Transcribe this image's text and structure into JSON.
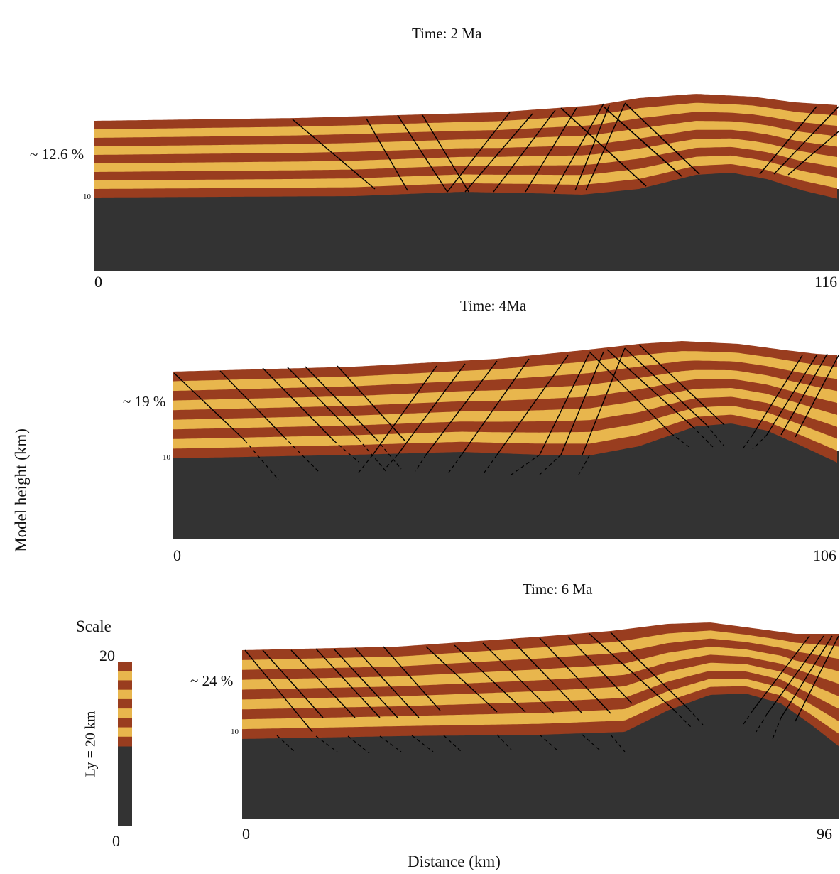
{
  "colors": {
    "basement": "#333333",
    "layer_dark": "#993d1f",
    "layer_light": "#e8b64d",
    "fault": "#000000"
  },
  "y_axis_label": "Model height (km)",
  "x_axis_label": "Distance (km)",
  "panels": [
    {
      "time_label": "Time: 2 Ma",
      "shortening_label": "~ 12.6 %",
      "ten_label": "10",
      "x_start_label": "0",
      "x_end_label": "116"
    },
    {
      "time_label": "Time: 4Ma",
      "shortening_label": "~ 19 %",
      "ten_label": "10",
      "x_start_label": "0",
      "x_end_label": "106"
    },
    {
      "time_label": "Time: 6 Ma",
      "shortening_label": "~ 24 %",
      "ten_label": "10",
      "x_start_label": "0",
      "x_end_label": "96"
    }
  ],
  "scale": {
    "title": "Scale",
    "top_label": "20",
    "bottom_label": "0",
    "ly_label": "Ly = 20 km"
  }
}
